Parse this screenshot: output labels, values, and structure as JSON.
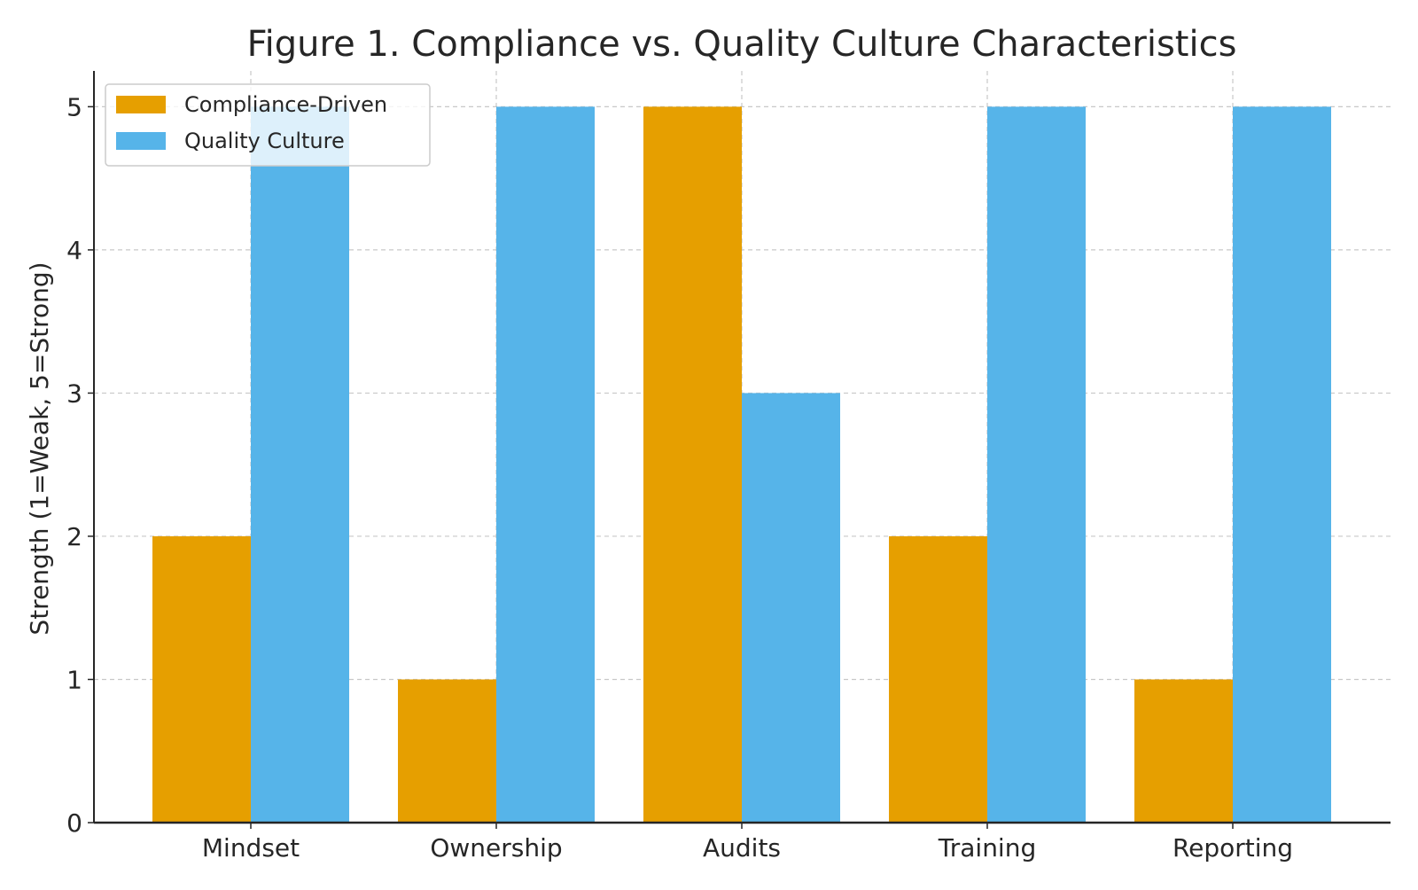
{
  "chart_data": {
    "type": "bar",
    "title": "Figure 1. Compliance vs. Quality Culture Characteristics",
    "xlabel": "",
    "ylabel": "Strength (1=Weak, 5=Strong)",
    "categories": [
      "Mindset",
      "Ownership",
      "Audits",
      "Training",
      "Reporting"
    ],
    "series": [
      {
        "name": "Compliance-Driven",
        "values": [
          2,
          1,
          5,
          2,
          1
        ],
        "color": "#E69F00"
      },
      {
        "name": "Quality Culture",
        "values": [
          5,
          5,
          3,
          5,
          5
        ],
        "color": "#56B4E9"
      }
    ],
    "ylim": [
      0,
      5.25
    ],
    "yticks": [
      0,
      1,
      2,
      3,
      4,
      5
    ],
    "grid": true,
    "legend": "top-left"
  }
}
